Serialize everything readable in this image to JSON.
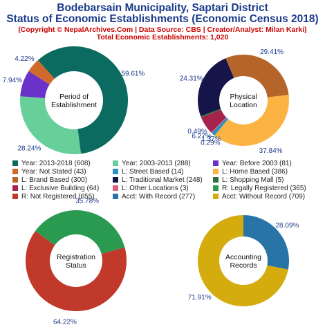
{
  "header": {
    "title_line1": "Bodebarsain Municipality, Saptari District",
    "title_line2": "Status of Economic Establishments (Economic Census 2018)",
    "subtitle_line1": "(Copyright © NepalArchives.Com | Data Source: CBS | Creator/Analyst: Milan Karki)",
    "subtitle_line2": "Total Economic Establishments: 1,020"
  },
  "chart_data": [
    {
      "type": "pie",
      "title": "Period of\nEstablishment",
      "slices": [
        {
          "label": "Year: 2013-2018 (608)",
          "value": 608,
          "pct": "59.61%",
          "color": "#0b6b60"
        },
        {
          "label": "Year: 2003-2013 (288)",
          "value": 288,
          "pct": "28.24%",
          "color": "#67cf9a"
        },
        {
          "label": "Year: Before 2003 (81)",
          "value": 81,
          "pct": "7.94%",
          "color": "#6a32c8"
        },
        {
          "label": "Year: Not Stated (43)",
          "value": 43,
          "pct": "4.22%",
          "color": "#d06a2c"
        }
      ]
    },
    {
      "type": "pie",
      "title": "Physical\nLocation",
      "slices": [
        {
          "label": "L: Home Based (386)",
          "value": 386,
          "pct": "37.84%",
          "color": "#fbb444"
        },
        {
          "label": "L: Street Based (14)",
          "value": 14,
          "pct": "1.37%",
          "color": "#2c8fc6"
        },
        {
          "label": "L: Other Locations (3)",
          "value": 3,
          "pct": "0.29%",
          "color": "#e0607c"
        },
        {
          "label": "L: Exclusive Building (64)",
          "value": 64,
          "pct": "6.27%",
          "color": "#a6234e"
        },
        {
          "label": "L: Shopping Mall (5)",
          "value": 5,
          "pct": "0.49%",
          "color": "#2e6e3c"
        },
        {
          "label": "L: Traditional Market (248)",
          "value": 248,
          "pct": "24.31%",
          "color": "#15154a"
        },
        {
          "label": "L: Brand Based (300)",
          "value": 300,
          "pct": "29.41%",
          "color": "#b5652a"
        }
      ]
    },
    {
      "type": "pie",
      "title": "Registration\nStatus",
      "slices": [
        {
          "label": "R: Legally Registered (365)",
          "value": 365,
          "pct": "35.78%",
          "color": "#2a9a50"
        },
        {
          "label": "R: Not Registered (655)",
          "value": 655,
          "pct": "64.22%",
          "color": "#c0392b"
        }
      ]
    },
    {
      "type": "pie",
      "title": "Accounting\nRecords",
      "slices": [
        {
          "label": "Acct: With Record (277)",
          "value": 277,
          "pct": "28.09%",
          "color": "#2874a6"
        },
        {
          "label": "Acct: Without Record (709)",
          "value": 709,
          "pct": "71.91%",
          "color": "#d4ac0d"
        }
      ]
    }
  ],
  "legend": {
    "items": [
      {
        "label": "Year: 2013-2018 (608)",
        "color": "#0b6b60"
      },
      {
        "label": "Year: 2003-2013 (288)",
        "color": "#67cf9a"
      },
      {
        "label": "Year: Before 2003 (81)",
        "color": "#6a32c8"
      },
      {
        "label": "Year: Not Stated (43)",
        "color": "#d06a2c"
      },
      {
        "label": "L: Street Based (14)",
        "color": "#2c8fc6"
      },
      {
        "label": "L: Home Based (386)",
        "color": "#fbb444"
      },
      {
        "label": "L: Brand Based (300)",
        "color": "#b5652a"
      },
      {
        "label": "L: Traditional Market (248)",
        "color": "#15154a"
      },
      {
        "label": "L: Shopping Mall (5)",
        "color": "#2e6e3c"
      },
      {
        "label": "L: Exclusive Building (64)",
        "color": "#a6234e"
      },
      {
        "label": "L: Other Locations (3)",
        "color": "#e0607c"
      },
      {
        "label": "R: Legally Registered (365)",
        "color": "#2a9a50"
      },
      {
        "label": "R: Not Registered (655)",
        "color": "#c0392b"
      },
      {
        "label": "Acct: With Record (277)",
        "color": "#2874a6"
      },
      {
        "label": "Acct: Without Record (709)",
        "color": "#d4ac0d"
      }
    ]
  }
}
